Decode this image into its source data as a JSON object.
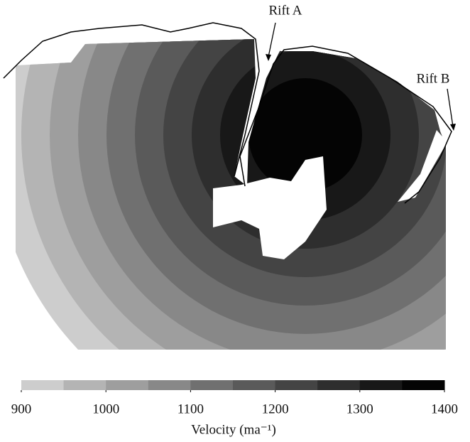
{
  "annotations": [
    "Rift A",
    "Rift B"
  ],
  "colorbar": {
    "label": "Velocity (ma⁻¹)",
    "lim": [
      900,
      1400
    ],
    "bins": [
      900,
      950,
      1000,
      1050,
      1100,
      1150,
      1200,
      1250,
      1300,
      1350,
      1400
    ],
    "colors": [
      "#cdcdcd",
      "#b4b4b4",
      "#9e9e9e",
      "#888888",
      "#707070",
      "#5a5a5a",
      "#444444",
      "#2e2e2e",
      "#181818",
      "#040404"
    ],
    "ticks": [
      900,
      1000,
      1100,
      1200,
      1300,
      1400
    ]
  }
}
